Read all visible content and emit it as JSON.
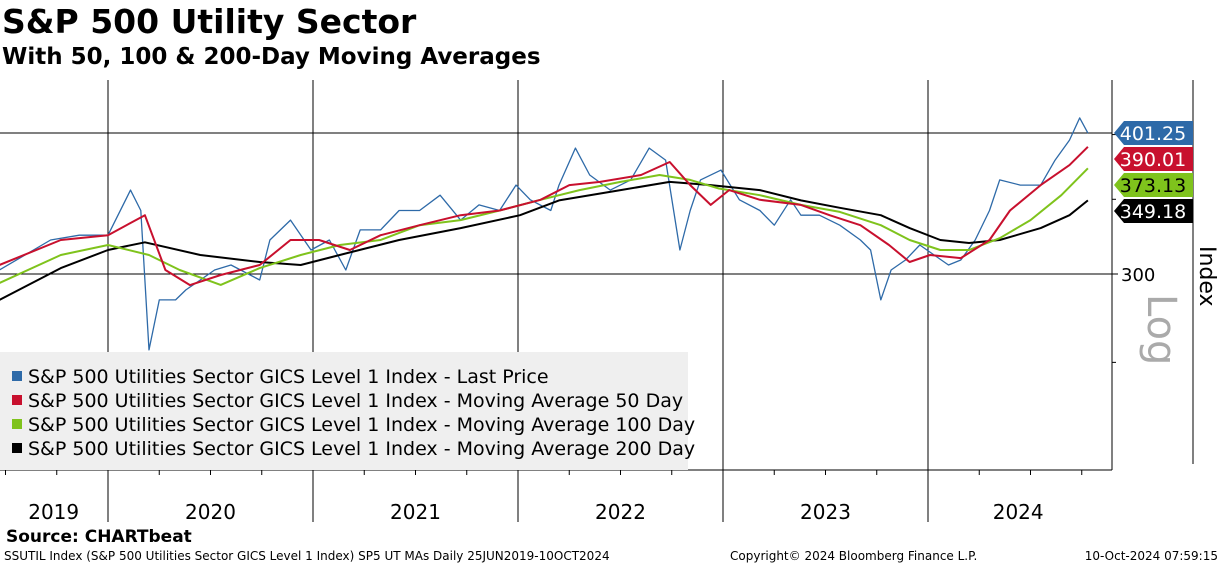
{
  "title": "S&P 500 Utility Sector",
  "subtitle": "With 50, 100 & 200-Day Moving Averages",
  "source": "Source: CHARTbeat",
  "footer": {
    "left": "SSUTIL Index (S&P 500 Utilities Sector GICS Level 1 Index) SP5 UT MAs  Daily 25JUN2019-10OCT2024",
    "center": "Copyright© 2024 Bloomberg Finance L.P.",
    "right": "10-Oct-2024 07:59:15"
  },
  "chart_data": {
    "type": "line",
    "title": "S&P 500 Utility Sector",
    "ylabel": "Index",
    "yscale": "log",
    "yscale_label": "Log",
    "ylim": [
      200,
      448
    ],
    "xlim": [
      2019.47,
      2024.88
    ],
    "yticks": [
      300
    ],
    "xtick_labels": [
      "2019",
      "2020",
      "2021",
      "2022",
      "2023",
      "2024"
    ],
    "year_boundaries": [
      2020,
      2021,
      2022,
      2023,
      2024
    ],
    "legend_position": "bottom-left",
    "series": [
      {
        "name": "S&P 500 Utilities Sector GICS Level 1 Index - Last Price",
        "color": "#2e6aa8",
        "last": "401.25",
        "points": [
          [
            2019.47,
            302.5
          ],
          [
            2019.72,
            321.8
          ],
          [
            2019.86,
            325
          ],
          [
            2020.0,
            325
          ],
          [
            2020.11,
            356.7
          ],
          [
            2020.16,
            342
          ],
          [
            2020.2,
            256.5
          ],
          [
            2020.25,
            284.4
          ],
          [
            2020.33,
            284.4
          ],
          [
            2020.38,
            290.3
          ],
          [
            2020.45,
            296.3
          ],
          [
            2020.52,
            302.5
          ],
          [
            2020.6,
            305.6
          ],
          [
            2020.74,
            296.3
          ],
          [
            2020.79,
            321.8
          ],
          [
            2020.89,
            335.3
          ],
          [
            2020.99,
            315.2
          ],
          [
            2021.08,
            321.8
          ],
          [
            2021.16,
            302.5
          ],
          [
            2021.23,
            328.6
          ],
          [
            2021.33,
            328.6
          ],
          [
            2021.42,
            342
          ],
          [
            2021.52,
            342
          ],
          [
            2021.62,
            353
          ],
          [
            2021.72,
            335.3
          ],
          [
            2021.81,
            346
          ],
          [
            2021.91,
            342
          ],
          [
            2021.99,
            360.4
          ],
          [
            2022.06,
            349.6
          ],
          [
            2022.16,
            342
          ],
          [
            2022.2,
            360.4
          ],
          [
            2022.28,
            389
          ],
          [
            2022.35,
            368
          ],
          [
            2022.45,
            356.7
          ],
          [
            2022.55,
            364.3
          ],
          [
            2022.64,
            389
          ],
          [
            2022.72,
            379.5
          ],
          [
            2022.79,
            315.2
          ],
          [
            2022.84,
            342
          ],
          [
            2022.89,
            364.3
          ],
          [
            2022.99,
            371.7
          ],
          [
            2023.08,
            349.6
          ],
          [
            2023.18,
            342
          ],
          [
            2023.25,
            331.8
          ],
          [
            2023.33,
            349.6
          ],
          [
            2023.38,
            338.7
          ],
          [
            2023.47,
            338.7
          ],
          [
            2023.57,
            331.8
          ],
          [
            2023.67,
            321.8
          ],
          [
            2023.72,
            315.2
          ],
          [
            2023.77,
            284.4
          ],
          [
            2023.82,
            302.5
          ],
          [
            2023.89,
            308.8
          ],
          [
            2023.96,
            318.5
          ],
          [
            2024.03,
            312
          ],
          [
            2024.1,
            305.6
          ],
          [
            2024.16,
            308.8
          ],
          [
            2024.23,
            321.8
          ],
          [
            2024.3,
            342
          ],
          [
            2024.35,
            364.3
          ],
          [
            2024.45,
            360.4
          ],
          [
            2024.55,
            360.4
          ],
          [
            2024.62,
            379.5
          ],
          [
            2024.69,
            395.5
          ],
          [
            2024.74,
            414
          ],
          [
            2024.78,
            401.25
          ]
        ]
      },
      {
        "name": "S&P 500 Utilities Sector GICS Level 1 Index - Moving Average 50 Day",
        "color": "#c8102e",
        "last": "390.01",
        "points": [
          [
            2019.47,
            305.6
          ],
          [
            2019.77,
            321.8
          ],
          [
            2020.0,
            325
          ],
          [
            2020.18,
            338.7
          ],
          [
            2020.28,
            302.5
          ],
          [
            2020.4,
            293.2
          ],
          [
            2020.55,
            299.4
          ],
          [
            2020.74,
            305.6
          ],
          [
            2020.89,
            321.8
          ],
          [
            2021.03,
            321.8
          ],
          [
            2021.18,
            315.2
          ],
          [
            2021.33,
            325
          ],
          [
            2021.52,
            331.8
          ],
          [
            2021.72,
            338.7
          ],
          [
            2021.91,
            342
          ],
          [
            2022.11,
            349.6
          ],
          [
            2022.25,
            360.4
          ],
          [
            2022.4,
            362.8
          ],
          [
            2022.6,
            368
          ],
          [
            2022.74,
            378
          ],
          [
            2022.84,
            360.4
          ],
          [
            2022.94,
            346
          ],
          [
            2023.03,
            356.7
          ],
          [
            2023.18,
            349.6
          ],
          [
            2023.38,
            346
          ],
          [
            2023.52,
            338.7
          ],
          [
            2023.67,
            331.8
          ],
          [
            2023.81,
            318.5
          ],
          [
            2023.91,
            307.5
          ],
          [
            2024.01,
            312
          ],
          [
            2024.16,
            310
          ],
          [
            2024.3,
            321.8
          ],
          [
            2024.4,
            342
          ],
          [
            2024.55,
            360.4
          ],
          [
            2024.69,
            375.6
          ],
          [
            2024.78,
            390.01
          ]
        ]
      },
      {
        "name": "S&P 500 Utilities Sector GICS Level 1 Index - Moving Average 100 Day",
        "color": "#7fc31c",
        "last": "373.13",
        "points": [
          [
            2019.47,
            294.5
          ],
          [
            2019.77,
            312
          ],
          [
            2020.0,
            318.5
          ],
          [
            2020.2,
            312
          ],
          [
            2020.35,
            302.5
          ],
          [
            2020.55,
            293.3
          ],
          [
            2020.74,
            303.7
          ],
          [
            2020.94,
            312
          ],
          [
            2021.13,
            318.5
          ],
          [
            2021.33,
            321.8
          ],
          [
            2021.52,
            331.8
          ],
          [
            2021.72,
            335.3
          ],
          [
            2021.91,
            342
          ],
          [
            2022.11,
            349.6
          ],
          [
            2022.3,
            356.7
          ],
          [
            2022.5,
            362.8
          ],
          [
            2022.69,
            368
          ],
          [
            2022.84,
            364.3
          ],
          [
            2022.98,
            357.9
          ],
          [
            2023.18,
            353
          ],
          [
            2023.38,
            346
          ],
          [
            2023.57,
            341
          ],
          [
            2023.77,
            331.8
          ],
          [
            2023.91,
            321.8
          ],
          [
            2024.06,
            315.2
          ],
          [
            2024.2,
            315.2
          ],
          [
            2024.35,
            323
          ],
          [
            2024.5,
            335.3
          ],
          [
            2024.65,
            353
          ],
          [
            2024.78,
            373.13
          ]
        ]
      },
      {
        "name": "S&P 500 Utilities Sector GICS Level 1 Index - Moving Average 200 Day",
        "color": "#000000",
        "last": "349.18",
        "points": [
          [
            2019.47,
            284.4
          ],
          [
            2019.77,
            303.7
          ],
          [
            2020.0,
            315.2
          ],
          [
            2020.18,
            320.3
          ],
          [
            2020.45,
            312
          ],
          [
            2020.74,
            307.5
          ],
          [
            2020.94,
            305.6
          ],
          [
            2021.13,
            312
          ],
          [
            2021.42,
            321.8
          ],
          [
            2021.72,
            329.8
          ],
          [
            2022.01,
            338.7
          ],
          [
            2022.2,
            349.2
          ],
          [
            2022.5,
            356.7
          ],
          [
            2022.74,
            362.8
          ],
          [
            2022.94,
            360.4
          ],
          [
            2023.18,
            356.7
          ],
          [
            2023.38,
            349.2
          ],
          [
            2023.57,
            343.9
          ],
          [
            2023.77,
            338.7
          ],
          [
            2023.91,
            329.8
          ],
          [
            2024.06,
            321.8
          ],
          [
            2024.2,
            319.8
          ],
          [
            2024.35,
            321.8
          ],
          [
            2024.55,
            329.8
          ],
          [
            2024.69,
            338.7
          ],
          [
            2024.78,
            349.18
          ]
        ]
      }
    ]
  }
}
